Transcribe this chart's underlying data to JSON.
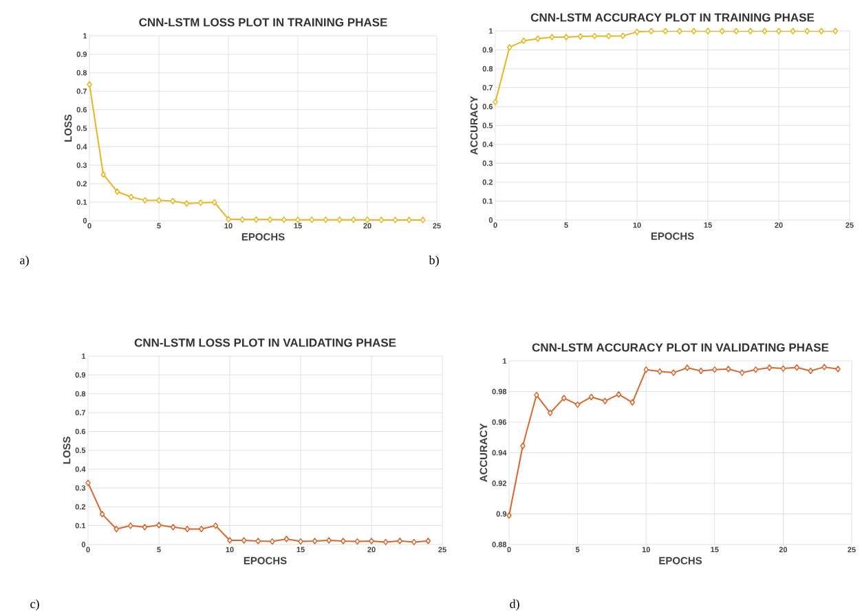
{
  "chart_data": [
    {
      "type": "line",
      "title": "CNN-LSTM LOSS PLOT IN TRAINING PHASE",
      "xlabel": "EPOCHS",
      "ylabel": "LOSS",
      "annotations": [
        "a)"
      ],
      "x": [
        0,
        1,
        2,
        3,
        4,
        5,
        6,
        7,
        8,
        9,
        10,
        11,
        12,
        13,
        14,
        15,
        16,
        17,
        18,
        19,
        20,
        21,
        22,
        23,
        24
      ],
      "series": [
        {
          "color": "#e8b51c",
          "values": [
            0.737,
            0.25,
            0.157,
            0.128,
            0.11,
            0.11,
            0.106,
            0.093,
            0.097,
            0.099,
            0.008,
            0.006,
            0.006,
            0.006,
            0.005,
            0.005,
            0.005,
            0.005,
            0.005,
            0.005,
            0.005,
            0.004,
            0.004,
            0.004,
            0.004
          ]
        }
      ],
      "xlim": [
        0,
        25
      ],
      "xticks": [
        0,
        5,
        10,
        15,
        20,
        25
      ],
      "ylim": [
        0,
        1
      ],
      "yticks": [
        0,
        0.1,
        0.2,
        0.3,
        0.4,
        0.5,
        0.6,
        0.7,
        0.8,
        0.9,
        1
      ],
      "grid": true,
      "marker": "diamond",
      "line_style": "solid"
    },
    {
      "type": "line",
      "title": "CNN-LSTM ACCURACY PLOT IN TRAINING PHASE",
      "xlabel": "EPOCHS",
      "ylabel": "ACCURACY",
      "annotations": [
        "b)"
      ],
      "x": [
        0,
        1,
        2,
        3,
        4,
        5,
        6,
        7,
        8,
        9,
        10,
        11,
        12,
        13,
        14,
        15,
        16,
        17,
        18,
        19,
        20,
        21,
        22,
        23,
        24
      ],
      "series": [
        {
          "color": "#e8b51c",
          "values": [
            0.624,
            0.913,
            0.948,
            0.959,
            0.967,
            0.967,
            0.971,
            0.973,
            0.973,
            0.974,
            0.995,
            0.999,
            0.999,
            0.999,
            0.999,
            0.999,
            0.999,
            0.999,
            0.999,
            0.999,
            0.999,
            0.999,
            0.999,
            0.999,
            0.999
          ]
        }
      ],
      "xlim": [
        0,
        25
      ],
      "xticks": [
        0,
        5,
        10,
        15,
        20,
        25
      ],
      "ylim": [
        0,
        1
      ],
      "yticks": [
        0,
        0.1,
        0.2,
        0.3,
        0.4,
        0.5,
        0.6,
        0.7,
        0.8,
        0.9,
        1
      ],
      "grid": true,
      "marker": "diamond",
      "line_style": "solid"
    },
    {
      "type": "line",
      "title": "CNN-LSTM LOSS PLOT IN VALIDATING PHASE",
      "xlabel": "EPOCHS",
      "ylabel": "LOSS",
      "annotations": [
        "c)"
      ],
      "x": [
        0,
        1,
        2,
        3,
        4,
        5,
        6,
        7,
        8,
        9,
        10,
        11,
        12,
        13,
        14,
        15,
        16,
        17,
        18,
        19,
        20,
        21,
        22,
        23,
        24
      ],
      "series": [
        {
          "color": "#d9652b",
          "values": [
            0.327,
            0.161,
            0.082,
            0.1,
            0.092,
            0.103,
            0.092,
            0.082,
            0.082,
            0.1,
            0.022,
            0.022,
            0.018,
            0.016,
            0.029,
            0.016,
            0.018,
            0.022,
            0.018,
            0.016,
            0.018,
            0.013,
            0.019,
            0.013,
            0.019
          ]
        }
      ],
      "xlim": [
        0,
        25
      ],
      "xticks": [
        0,
        5,
        10,
        15,
        20,
        25
      ],
      "ylim": [
        0,
        1
      ],
      "yticks": [
        0,
        0.1,
        0.2,
        0.3,
        0.4,
        0.5,
        0.6,
        0.7,
        0.8,
        0.9,
        1
      ],
      "grid": true,
      "marker": "diamond",
      "line_style": "solid"
    },
    {
      "type": "line",
      "title": "CNN-LSTM ACCURACY PLOT IN VALIDATING PHASE",
      "xlabel": "EPOCHS",
      "ylabel": "ACCURACY",
      "annotations": [
        "d)"
      ],
      "x": [
        0,
        1,
        2,
        3,
        4,
        5,
        6,
        7,
        8,
        9,
        10,
        11,
        12,
        13,
        14,
        15,
        16,
        17,
        18,
        19,
        20,
        21,
        22,
        23,
        24
      ],
      "series": [
        {
          "color": "#d9652b",
          "values": [
            0.899,
            0.9445,
            0.9777,
            0.966,
            0.9757,
            0.9714,
            0.9764,
            0.9738,
            0.9781,
            0.9729,
            0.9943,
            0.9931,
            0.9923,
            0.9955,
            0.9935,
            0.9943,
            0.9947,
            0.9923,
            0.9943,
            0.9956,
            0.995,
            0.9957,
            0.9935,
            0.996,
            0.9947
          ]
        }
      ],
      "xlim": [
        0,
        25
      ],
      "xticks": [
        0,
        5,
        10,
        15,
        20,
        25
      ],
      "ylim": [
        0.88,
        1
      ],
      "yticks": [
        0.88,
        0.9,
        0.92,
        0.94,
        0.96,
        0.98,
        1
      ],
      "grid": true,
      "marker": "diamond",
      "line_style": "solid"
    }
  ]
}
